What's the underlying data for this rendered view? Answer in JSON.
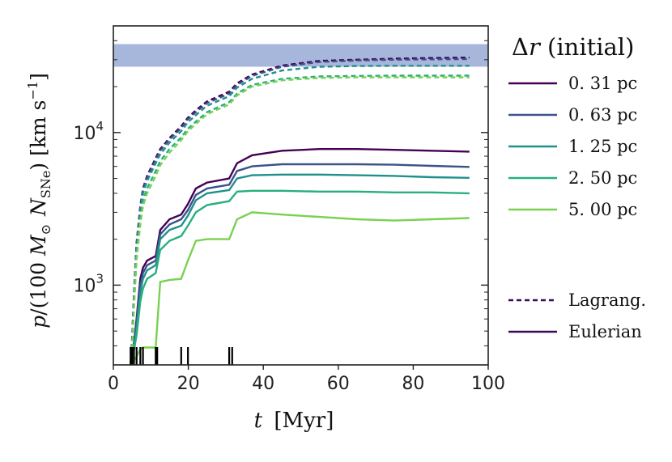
{
  "chart_data": {
    "type": "line",
    "title": "",
    "xlabel": "t [Myr]",
    "xlabel_italic": "t",
    "xlabel_unit": "[Myr]",
    "ylabel": "p/(100 M_sun N_SNe) [km s^-1]",
    "ylabel_parts": {
      "p": "p",
      "open": "/(100 ",
      "M": "M",
      "sun": "⊙",
      "N": "N",
      "sub": "SNe",
      "close": ")",
      "unit": "[km s",
      "exp": "−1",
      "unit_close": "]"
    },
    "xlim": [
      0,
      100
    ],
    "ylim": [
      300,
      50000
    ],
    "yscale": "log",
    "x_ticks": [
      0,
      20,
      40,
      60,
      80,
      100
    ],
    "x_tick_labels": [
      "0",
      "20",
      "40",
      "60",
      "80",
      "100"
    ],
    "y_ticks": [
      1000,
      10000
    ],
    "y_tick_base": "10",
    "y_tick_exps": [
      "3",
      "4"
    ],
    "shaded_band": {
      "y_low": 27000,
      "y_high": 38000,
      "color": "#a7b7dc"
    },
    "sn_times": [
      4.6,
      5.0,
      5.5,
      6.2,
      7.2,
      7.9,
      11.3,
      11.7,
      18.1,
      19.9,
      30.9,
      31.7
    ],
    "legend_title": "Δr (initial)",
    "legend_title_symbol": "Δ",
    "legend_title_var": "r",
    "legend_title_rest": " (initial)",
    "style_labels": [
      "Lagrang.",
      "Eulerian"
    ],
    "style_color": "#3c0a55",
    "series": [
      {
        "name": "0. 31 pc",
        "color": "#440154",
        "scale": 1.0,
        "x": [
          4.6,
          5.0,
          5.5,
          6.2,
          7.2,
          7.9,
          9.0,
          11.3,
          12.5,
          15.0,
          18.1,
          19.9,
          22.0,
          25.0,
          30.9,
          33.0,
          37.0,
          45.0,
          55.0,
          65.0,
          75.0,
          85.0,
          95.0
        ],
        "lag": [
          300,
          450,
          900,
          1900,
          3300,
          4300,
          5200,
          6800,
          7800,
          9200,
          11000,
          12500,
          14000,
          16000,
          18500,
          21000,
          24000,
          27500,
          29500,
          30000,
          30500,
          30800,
          31000
        ],
        "eul": [
          300,
          360,
          420,
          600,
          1100,
          1300,
          1450,
          1550,
          2300,
          2700,
          2900,
          3400,
          4300,
          4700,
          5000,
          6300,
          7100,
          7600,
          7800,
          7800,
          7700,
          7600,
          7500
        ]
      },
      {
        "name": "0. 63 pc",
        "color": "#3b528b",
        "scale": 1.0,
        "x": [
          4.6,
          5.0,
          5.5,
          6.2,
          7.2,
          7.9,
          9.0,
          11.3,
          12.5,
          15.0,
          18.1,
          19.9,
          22.0,
          25.0,
          30.9,
          33.0,
          37.0,
          45.0,
          55.0,
          65.0,
          75.0,
          85.0,
          95.0
        ],
        "lag": [
          300,
          440,
          880,
          1850,
          3200,
          4200,
          5050,
          6600,
          7600,
          9000,
          10700,
          12200,
          13600,
          15600,
          18000,
          20500,
          23500,
          27000,
          29000,
          29700,
          30000,
          30200,
          30300
        ],
        "eul": [
          300,
          355,
          410,
          570,
          1000,
          1200,
          1350,
          1450,
          2150,
          2500,
          2700,
          3100,
          3900,
          4300,
          4550,
          5600,
          6000,
          6200,
          6200,
          6200,
          6150,
          6050,
          5950
        ]
      },
      {
        "name": "1. 25 pc",
        "color": "#21908c",
        "scale": 1.0,
        "x": [
          4.6,
          5.0,
          5.5,
          6.2,
          7.2,
          7.9,
          9.0,
          11.3,
          12.5,
          15.0,
          18.1,
          19.9,
          22.0,
          25.0,
          30.9,
          33.0,
          37.0,
          45.0,
          55.0,
          65.0,
          75.0,
          85.0,
          95.0
        ],
        "lag": [
          300,
          420,
          850,
          1750,
          3050,
          4000,
          4800,
          6300,
          7200,
          8600,
          10200,
          11700,
          13000,
          15000,
          17300,
          19700,
          22500,
          25500,
          27000,
          27300,
          27400,
          27400,
          27400
        ],
        "eul": [
          300,
          345,
          395,
          520,
          900,
          1100,
          1250,
          1350,
          2000,
          2300,
          2450,
          2850,
          3600,
          4000,
          4200,
          5000,
          5250,
          5300,
          5300,
          5250,
          5200,
          5100,
          5050
        ]
      },
      {
        "name": "2. 50 pc",
        "color": "#29af7f",
        "scale": 1.0,
        "x": [
          4.6,
          5.0,
          5.5,
          6.2,
          7.2,
          7.9,
          9.0,
          11.3,
          12.5,
          15.0,
          18.1,
          19.9,
          22.0,
          25.0,
          30.9,
          33.0,
          37.0,
          45.0,
          55.0,
          65.0,
          75.0,
          85.0,
          95.0
        ],
        "lag": [
          300,
          400,
          780,
          1600,
          2750,
          3600,
          4300,
          5600,
          6500,
          7800,
          9300,
          10600,
          11800,
          13600,
          15800,
          18000,
          20500,
          22500,
          23300,
          23500,
          23600,
          23600,
          23600
        ],
        "eul": [
          300,
          335,
          375,
          470,
          780,
          950,
          1100,
          1200,
          1700,
          1950,
          2100,
          2450,
          3000,
          3350,
          3550,
          4100,
          4150,
          4150,
          4100,
          4100,
          4050,
          4050,
          4000
        ]
      },
      {
        "name": "5. 00 pc",
        "color": "#7ad151",
        "scale": 1.0,
        "x": [
          4.6,
          5.0,
          5.5,
          6.2,
          7.2,
          7.9,
          9.0,
          11.3,
          12.5,
          15.0,
          18.1,
          19.9,
          22.0,
          25.0,
          30.9,
          33.0,
          37.0,
          45.0,
          55.0,
          65.0,
          75.0,
          85.0,
          95.0
        ],
        "lag": [
          300,
          380,
          720,
          1450,
          2500,
          3300,
          4000,
          5200,
          6100,
          7400,
          8900,
          10200,
          11400,
          13200,
          15300,
          17500,
          20000,
          22000,
          22800,
          23000,
          23000,
          23000,
          23000
        ],
        "eul": [
          300,
          310,
          320,
          340,
          380,
          390,
          390,
          390,
          1050,
          1080,
          1100,
          1450,
          1950,
          2000,
          2000,
          2700,
          3000,
          2900,
          2800,
          2700,
          2650,
          2700,
          2750
        ]
      }
    ]
  }
}
